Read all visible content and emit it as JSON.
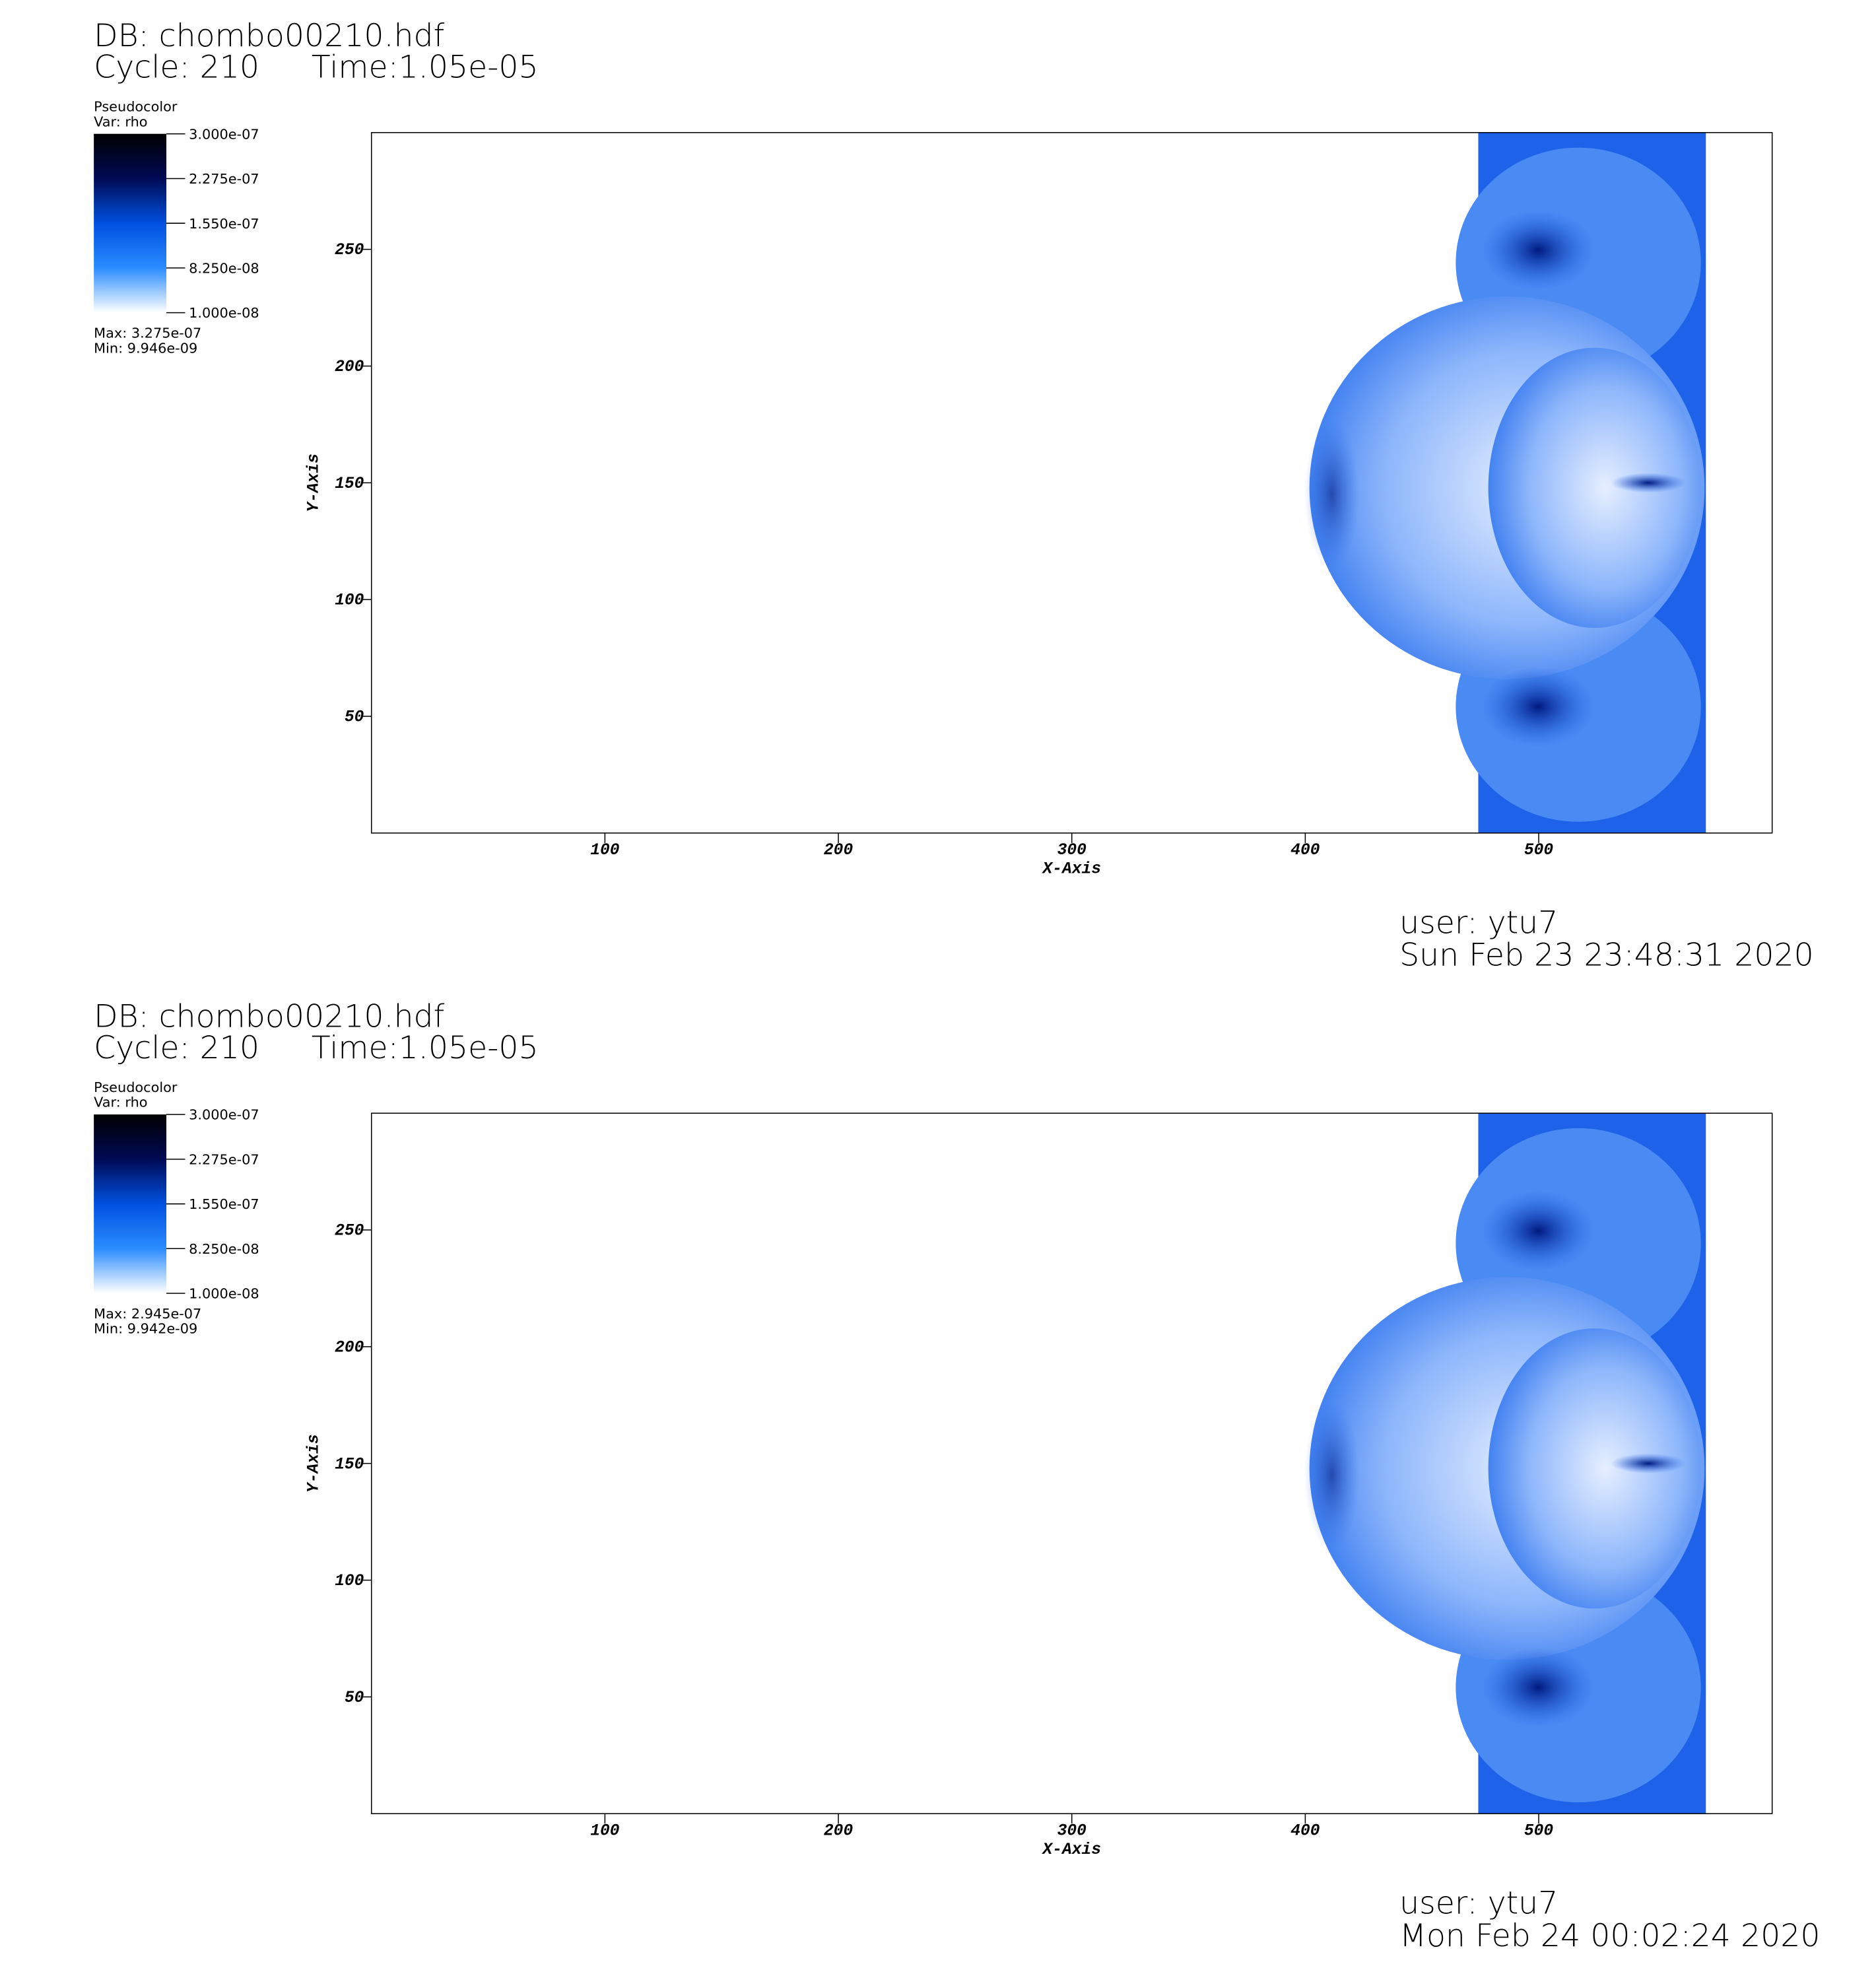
{
  "chart_data": [
    {
      "type": "pseudocolor",
      "title": "DB: chombo00210.hdf",
      "cycle": "Cycle: 210",
      "time": "Time:1.05e-05",
      "legend_title": "Pseudocolor",
      "variable": "Var: rho",
      "colorbar_lim": [
        1e-08,
        3e-07
      ],
      "colorbar_ticks": [
        {
          "value": 3e-07,
          "label": "3.000e-07"
        },
        {
          "value": 2.275e-07,
          "label": "2.275e-07"
        },
        {
          "value": 1.55e-07,
          "label": "1.550e-07"
        },
        {
          "value": 8.25e-08,
          "label": "8.250e-08"
        },
        {
          "value": 1e-08,
          "label": "1.000e-08"
        }
      ],
      "colormap": [
        "#ffffff",
        "#2a8cff",
        "#0050e0",
        "#000a55",
        "#000000"
      ],
      "max_label": "Max:  3.275e-07",
      "min_label": "Min:  9.946e-09",
      "x_label": "X-Axis",
      "y_label": "Y-Axis",
      "xlim": [
        0,
        600
      ],
      "ylim": [
        0,
        300
      ],
      "xticks": [
        100,
        200,
        300,
        400,
        500
      ],
      "yticks": [
        50,
        100,
        150,
        200,
        250
      ],
      "user": "user: ytu7",
      "date": "Sun Feb 23 23:48:31 2020"
    },
    {
      "type": "pseudocolor",
      "title": "DB: chombo00210.hdf",
      "cycle": "Cycle: 210",
      "time": "Time:1.05e-05",
      "legend_title": "Pseudocolor",
      "variable": "Var: rho",
      "colorbar_lim": [
        1e-08,
        3e-07
      ],
      "colorbar_ticks": [
        {
          "value": 3e-07,
          "label": "3.000e-07"
        },
        {
          "value": 2.275e-07,
          "label": "2.275e-07"
        },
        {
          "value": 1.55e-07,
          "label": "1.550e-07"
        },
        {
          "value": 8.25e-08,
          "label": "8.250e-08"
        },
        {
          "value": 1e-08,
          "label": "1.000e-08"
        }
      ],
      "colormap": [
        "#ffffff",
        "#2a8cff",
        "#0050e0",
        "#000a55",
        "#000000"
      ],
      "max_label": "Max:  2.945e-07",
      "min_label": "Min:  9.942e-09",
      "x_label": "X-Axis",
      "y_label": "Y-Axis",
      "xlim": [
        0,
        600
      ],
      "ylim": [
        0,
        300
      ],
      "xticks": [
        100,
        200,
        300,
        400,
        500
      ],
      "yticks": [
        50,
        100,
        150,
        200,
        250
      ],
      "user": "user: ytu7",
      "date": "Mon Feb 24 00:02:24 2020"
    }
  ]
}
